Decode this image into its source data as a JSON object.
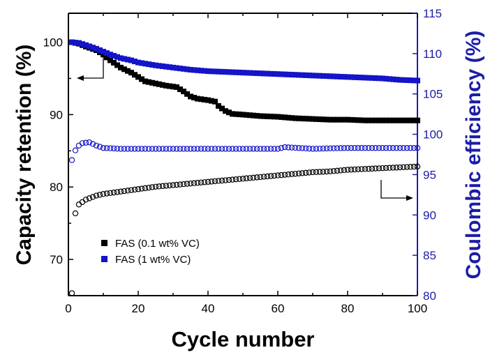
{
  "chart_data": {
    "type": "scatter",
    "xlabel": "Cycle number",
    "ylabel_left": "Capacity retention (%)",
    "ylabel_right": "Coulombic efficiency (%)",
    "xlim": [
      0,
      100
    ],
    "ylim_left": [
      65,
      104
    ],
    "ylim_right": [
      80,
      115
    ],
    "x_ticks": [
      0,
      20,
      40,
      60,
      80,
      100
    ],
    "y_ticks_left": [
      70,
      80,
      90,
      100
    ],
    "y_ticks_right": [
      80,
      85,
      90,
      95,
      100,
      105,
      110,
      115
    ],
    "grid": false,
    "legend_position": "bottom-left",
    "series": [
      {
        "name": "FAS (0.1 wt% VC)",
        "axis": "left",
        "metric": "capacity retention",
        "marker": "filled-square",
        "color": "#000000",
        "points": [
          [
            1,
            100
          ],
          [
            3,
            99.8
          ],
          [
            5,
            99.4
          ],
          [
            8,
            98.9
          ],
          [
            10,
            98.3
          ],
          [
            12,
            97.5
          ],
          [
            15,
            96.5
          ],
          [
            18,
            95.8
          ],
          [
            20,
            95.2
          ],
          [
            22,
            94.6
          ],
          [
            25,
            94.3
          ],
          [
            28,
            94.0
          ],
          [
            31,
            93.8
          ],
          [
            33,
            93.2
          ],
          [
            35,
            92.5
          ],
          [
            37,
            92.2
          ],
          [
            40,
            92.0
          ],
          [
            42,
            91.8
          ],
          [
            43,
            91.2
          ],
          [
            45,
            90.5
          ],
          [
            47,
            90.1
          ],
          [
            50,
            90.0
          ],
          [
            55,
            89.8
          ],
          [
            60,
            89.7
          ],
          [
            65,
            89.5
          ],
          [
            70,
            89.4
          ],
          [
            75,
            89.3
          ],
          [
            80,
            89.3
          ],
          [
            85,
            89.2
          ],
          [
            90,
            89.2
          ],
          [
            95,
            89.2
          ],
          [
            100,
            89.2
          ]
        ]
      },
      {
        "name": "FAS (1 wt% VC)",
        "axis": "left",
        "metric": "capacity retention",
        "marker": "filled-square",
        "color": "#1414c8",
        "points": [
          [
            1,
            100
          ],
          [
            3,
            99.9
          ],
          [
            5,
            99.6
          ],
          [
            8,
            99.1
          ],
          [
            10,
            98.7
          ],
          [
            12,
            98.3
          ],
          [
            15,
            97.8
          ],
          [
            18,
            97.5
          ],
          [
            20,
            97.2
          ],
          [
            25,
            96.8
          ],
          [
            30,
            96.5
          ],
          [
            35,
            96.2
          ],
          [
            40,
            96.0
          ],
          [
            45,
            95.9
          ],
          [
            50,
            95.8
          ],
          [
            55,
            95.7
          ],
          [
            60,
            95.6
          ],
          [
            65,
            95.5
          ],
          [
            70,
            95.4
          ],
          [
            75,
            95.3
          ],
          [
            80,
            95.2
          ],
          [
            85,
            95.1
          ],
          [
            90,
            95.0
          ],
          [
            95,
            94.8
          ],
          [
            100,
            94.7
          ]
        ]
      },
      {
        "name": "FAS (0.1 wt% VC)",
        "axis": "right",
        "metric": "coulombic efficiency",
        "marker": "open-circle",
        "color": "#000000",
        "points": [
          [
            1,
            80.3
          ],
          [
            2,
            90.2
          ],
          [
            3,
            91.3
          ],
          [
            5,
            91.9
          ],
          [
            8,
            92.4
          ],
          [
            10,
            92.6
          ],
          [
            15,
            92.9
          ],
          [
            20,
            93.2
          ],
          [
            25,
            93.5
          ],
          [
            30,
            93.7
          ],
          [
            35,
            93.9
          ],
          [
            40,
            94.1
          ],
          [
            45,
            94.3
          ],
          [
            50,
            94.5
          ],
          [
            55,
            94.7
          ],
          [
            60,
            94.9
          ],
          [
            65,
            95.1
          ],
          [
            70,
            95.3
          ],
          [
            75,
            95.4
          ],
          [
            80,
            95.6
          ],
          [
            85,
            95.7
          ],
          [
            90,
            95.8
          ],
          [
            95,
            95.9
          ],
          [
            100,
            96.0
          ]
        ]
      },
      {
        "name": "FAS (1 wt% VC)",
        "axis": "right",
        "metric": "coulombic efficiency",
        "marker": "open-circle",
        "color": "#1414c8",
        "points": [
          [
            1,
            96.8
          ],
          [
            2,
            98.0
          ],
          [
            3,
            98.6
          ],
          [
            4,
            98.9
          ],
          [
            6,
            99.0
          ],
          [
            8,
            98.6
          ],
          [
            10,
            98.3
          ],
          [
            15,
            98.2
          ],
          [
            20,
            98.2
          ],
          [
            30,
            98.2
          ],
          [
            40,
            98.2
          ],
          [
            50,
            98.2
          ],
          [
            60,
            98.2
          ],
          [
            62,
            98.4
          ],
          [
            70,
            98.2
          ],
          [
            80,
            98.3
          ],
          [
            90,
            98.3
          ],
          [
            100,
            98.3
          ]
        ]
      }
    ],
    "annotations": [
      {
        "type": "arrow",
        "direction": "left",
        "points_to_axis": "left"
      },
      {
        "type": "arrow",
        "direction": "right",
        "points_to_axis": "right"
      }
    ]
  }
}
